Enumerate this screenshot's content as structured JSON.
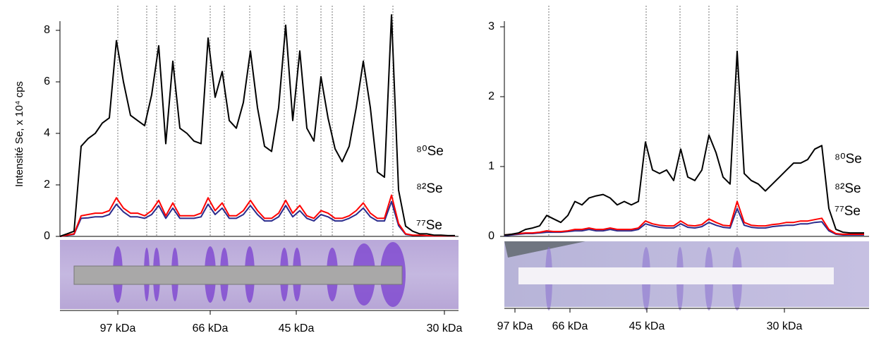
{
  "chart_data": [
    {
      "type": "line",
      "ylabel": "Intensité Se, x 10⁴ cps",
      "ylim": [
        0,
        8
      ],
      "yticks": [
        0,
        2,
        4,
        6,
        8
      ],
      "x_tick_labels": [
        "97 kDa",
        "66 kDa",
        "45 kDa",
        "30 kDa"
      ],
      "series": [
        {
          "name": "⁸⁰Se",
          "color": "#000000",
          "values": [
            0,
            0.1,
            0.2,
            3.5,
            3.8,
            4.0,
            4.4,
            4.6,
            7.6,
            6.0,
            4.7,
            4.5,
            4.3,
            5.5,
            7.4,
            3.6,
            6.8,
            4.2,
            4.0,
            3.7,
            3.6,
            7.7,
            5.4,
            6.4,
            4.5,
            4.2,
            5.2,
            7.2,
            5.0,
            3.5,
            3.3,
            5.0,
            8.2,
            4.5,
            7.2,
            4.2,
            3.7,
            6.2,
            4.6,
            3.4,
            2.9,
            3.5,
            5.0,
            6.8,
            5.0,
            2.5,
            2.3,
            8.6,
            1.8,
            0.4,
            0.2,
            0.1,
            0.1,
            0.05,
            0.05,
            0.03,
            0.03
          ]
        },
        {
          "name": "⁸²Se",
          "color": "#ff0000",
          "values": [
            0,
            0.05,
            0.1,
            0.8,
            0.85,
            0.9,
            0.9,
            1.0,
            1.5,
            1.1,
            0.9,
            0.9,
            0.8,
            1.0,
            1.4,
            0.8,
            1.3,
            0.8,
            0.8,
            0.8,
            0.9,
            1.5,
            1.0,
            1.3,
            0.8,
            0.8,
            1.0,
            1.4,
            1.0,
            0.7,
            0.7,
            0.9,
            1.4,
            0.9,
            1.2,
            0.8,
            0.7,
            1.0,
            0.9,
            0.7,
            0.7,
            0.8,
            1.0,
            1.3,
            0.9,
            0.7,
            0.7,
            1.6,
            0.5,
            0.1,
            0.05,
            0.05,
            0.03,
            0.02,
            0.02,
            0.02,
            0.02
          ]
        },
        {
          "name": "⁷⁷Se",
          "color": "#2b2b8c",
          "values": [
            0,
            0.04,
            0.08,
            0.7,
            0.72,
            0.76,
            0.76,
            0.85,
            1.25,
            0.95,
            0.76,
            0.76,
            0.7,
            0.85,
            1.2,
            0.7,
            1.1,
            0.7,
            0.7,
            0.7,
            0.76,
            1.25,
            0.85,
            1.1,
            0.7,
            0.7,
            0.85,
            1.2,
            0.85,
            0.6,
            0.6,
            0.76,
            1.2,
            0.76,
            1.0,
            0.7,
            0.6,
            0.85,
            0.76,
            0.6,
            0.6,
            0.7,
            0.85,
            1.1,
            0.76,
            0.6,
            0.6,
            1.35,
            0.42,
            0.08,
            0.04,
            0.04,
            0.02,
            0.02,
            0.02,
            0.02,
            0.02
          ]
        }
      ]
    },
    {
      "type": "line",
      "ylim": [
        0,
        3
      ],
      "yticks": [
        0,
        1,
        2,
        3
      ],
      "x_tick_labels": [
        "97 kDa",
        "66 kDa",
        "45 kDa",
        "30 kDa"
      ],
      "series": [
        {
          "name": "⁸⁰Se",
          "color": "#000000",
          "values": [
            0.02,
            0.03,
            0.05,
            0.1,
            0.12,
            0.15,
            0.3,
            0.25,
            0.2,
            0.3,
            0.5,
            0.45,
            0.55,
            0.58,
            0.6,
            0.55,
            0.45,
            0.5,
            0.45,
            0.5,
            1.35,
            0.95,
            0.9,
            0.95,
            0.8,
            1.25,
            0.85,
            0.8,
            0.95,
            1.45,
            1.2,
            0.85,
            0.75,
            2.65,
            0.9,
            0.8,
            0.75,
            0.65,
            0.75,
            0.85,
            0.95,
            1.05,
            1.05,
            1.1,
            1.25,
            1.3,
            0.4,
            0.1,
            0.06,
            0.05,
            0.05,
            0.05
          ]
        },
        {
          "name": "⁸²Se",
          "color": "#ff0000",
          "values": [
            0.02,
            0.03,
            0.04,
            0.05,
            0.05,
            0.06,
            0.08,
            0.07,
            0.07,
            0.08,
            0.1,
            0.1,
            0.12,
            0.1,
            0.1,
            0.12,
            0.1,
            0.1,
            0.1,
            0.12,
            0.22,
            0.18,
            0.16,
            0.15,
            0.15,
            0.22,
            0.16,
            0.15,
            0.17,
            0.25,
            0.2,
            0.16,
            0.15,
            0.5,
            0.2,
            0.16,
            0.15,
            0.15,
            0.17,
            0.18,
            0.2,
            0.2,
            0.22,
            0.22,
            0.24,
            0.26,
            0.1,
            0.04,
            0.03,
            0.03,
            0.03,
            0.03
          ]
        },
        {
          "name": "⁷⁷Se",
          "color": "#2b2b8c",
          "values": [
            0.01,
            0.02,
            0.03,
            0.04,
            0.04,
            0.05,
            0.06,
            0.06,
            0.06,
            0.07,
            0.08,
            0.08,
            0.1,
            0.08,
            0.08,
            0.1,
            0.08,
            0.08,
            0.08,
            0.1,
            0.18,
            0.15,
            0.13,
            0.12,
            0.12,
            0.18,
            0.13,
            0.12,
            0.14,
            0.2,
            0.16,
            0.13,
            0.12,
            0.4,
            0.16,
            0.13,
            0.12,
            0.12,
            0.14,
            0.15,
            0.16,
            0.16,
            0.18,
            0.18,
            0.2,
            0.21,
            0.08,
            0.03,
            0.02,
            0.02,
            0.02,
            0.02
          ]
        }
      ]
    }
  ]
}
